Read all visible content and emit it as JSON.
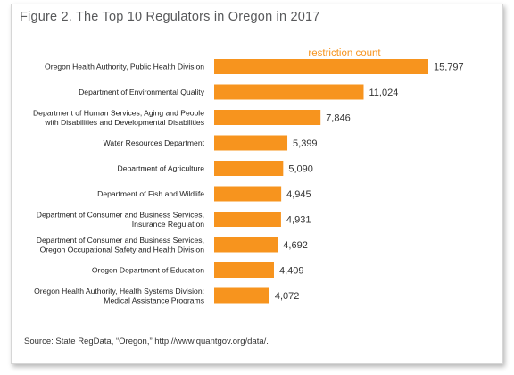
{
  "figure_title": "Figure 2. The Top 10 Regulators in Oregon in 2017",
  "source": "Source: State RegData, “Oregon,” http://www.quantgov.org/data/.",
  "colors": {
    "bar": "#f7941e",
    "series_label": "#f7941e",
    "title": "#58595b"
  },
  "chart_data": {
    "type": "bar",
    "orientation": "horizontal",
    "title": "Figure 2. The Top 10 Regulators in Oregon in 2017",
    "xlabel": "",
    "ylabel": "",
    "series_label": "restriction count",
    "xlim": [
      0,
      15797
    ],
    "grid": false,
    "categories": [
      [
        "Oregon Health Authority, Public Health Division"
      ],
      [
        "Department of Environmental Quality"
      ],
      [
        "Department of Human Services, Aging and People",
        "with Disabilities and Developmental Disabilities"
      ],
      [
        "Water Resources Department"
      ],
      [
        "Department of Agriculture"
      ],
      [
        "Department of Fish and Wildlife"
      ],
      [
        "Department of Consumer and Business Services,",
        "Insurance Regulation"
      ],
      [
        "Department of Consumer and Business Services,",
        "Oregon Occupational Safety and Health Division"
      ],
      [
        "Oregon Department of Education"
      ],
      [
        "Oregon Health Authority, Health Systems Division:",
        "Medical Assistance Programs"
      ]
    ],
    "values": [
      15797,
      11024,
      7846,
      5399,
      5090,
      4945,
      4931,
      4692,
      4409,
      4072
    ],
    "value_labels": [
      "15,797",
      "11,024",
      "7,846",
      "5,399",
      "5,090",
      "4,945",
      "4,931",
      "4,692",
      "4,409",
      "4,072"
    ]
  }
}
